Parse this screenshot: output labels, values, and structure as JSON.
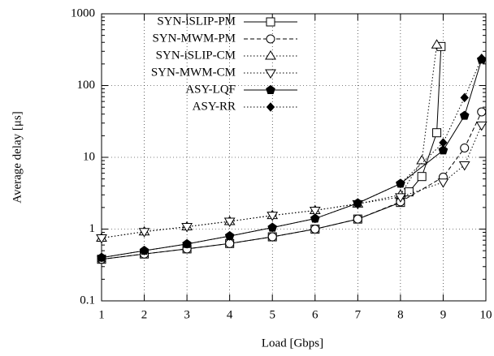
{
  "chart_data": {
    "type": "line",
    "yscale": "log",
    "grid": true,
    "legend": "upper left",
    "xlabel": "Load [Gbps]",
    "ylabel": "Average delay [μs]",
    "xlim": [
      1,
      10
    ],
    "ylim": [
      0.1,
      1000
    ],
    "xticks": [
      1,
      2,
      3,
      4,
      5,
      6,
      7,
      8,
      9,
      10
    ],
    "yticks": [
      0.1,
      1,
      10,
      100,
      1000
    ],
    "series": [
      {
        "name": "SYN-iSLIP-PM",
        "color": "#000000",
        "marker": "square",
        "line": "solid",
        "x": [
          1,
          2,
          3,
          4,
          5,
          6,
          7,
          8,
          8.2,
          8.5,
          8.85,
          8.95
        ],
        "values": [
          0.38,
          0.45,
          0.53,
          0.63,
          0.78,
          1.0,
          1.38,
          2.35,
          3.3,
          5.4,
          22,
          350
        ]
      },
      {
        "name": "SYN-MWM-PM",
        "color": "#000000",
        "marker": "circle",
        "line": "dashed",
        "x": [
          1,
          2,
          3,
          4,
          5,
          6,
          7,
          8,
          9,
          9.5,
          9.9
        ],
        "values": [
          0.38,
          0.45,
          0.53,
          0.63,
          0.78,
          1.0,
          1.38,
          2.4,
          5.3,
          13.5,
          43
        ]
      },
      {
        "name": "SYN-iSLIP-CM",
        "color": "#000000",
        "marker": "triangle",
        "line": "dotted",
        "x": [
          1,
          2,
          3,
          4,
          5,
          6,
          7,
          8,
          8.5,
          8.85
        ],
        "values": [
          0.75,
          0.92,
          1.08,
          1.28,
          1.55,
          1.82,
          2.25,
          3.0,
          9,
          370
        ]
      },
      {
        "name": "SYN-MWM-CM",
        "color": "#000000",
        "marker": "triangle-down",
        "line": "dotted",
        "x": [
          1,
          2,
          3,
          4,
          5,
          6,
          7,
          8,
          9,
          9.5,
          9.9
        ],
        "values": [
          0.75,
          0.92,
          1.08,
          1.28,
          1.55,
          1.82,
          2.25,
          2.8,
          4.5,
          7.8,
          28
        ]
      },
      {
        "name": "ASY-LQF",
        "color": "#000000",
        "marker": "pentagon",
        "line": "solid",
        "x": [
          1,
          2,
          3,
          4,
          5,
          6,
          7,
          8,
          9,
          9.5,
          9.9
        ],
        "values": [
          0.4,
          0.5,
          0.62,
          0.8,
          1.05,
          1.4,
          2.3,
          4.3,
          12.5,
          38,
          230
        ]
      },
      {
        "name": "ASY-RR",
        "color": "#000000",
        "marker": "diamond",
        "line": "dotted",
        "x": [
          1,
          2,
          3,
          4,
          5,
          6,
          7,
          8,
          9,
          9.5,
          9.9
        ],
        "values": [
          0.4,
          0.5,
          0.62,
          0.8,
          1.05,
          1.4,
          2.3,
          4.3,
          16,
          68,
          240
        ]
      }
    ]
  }
}
